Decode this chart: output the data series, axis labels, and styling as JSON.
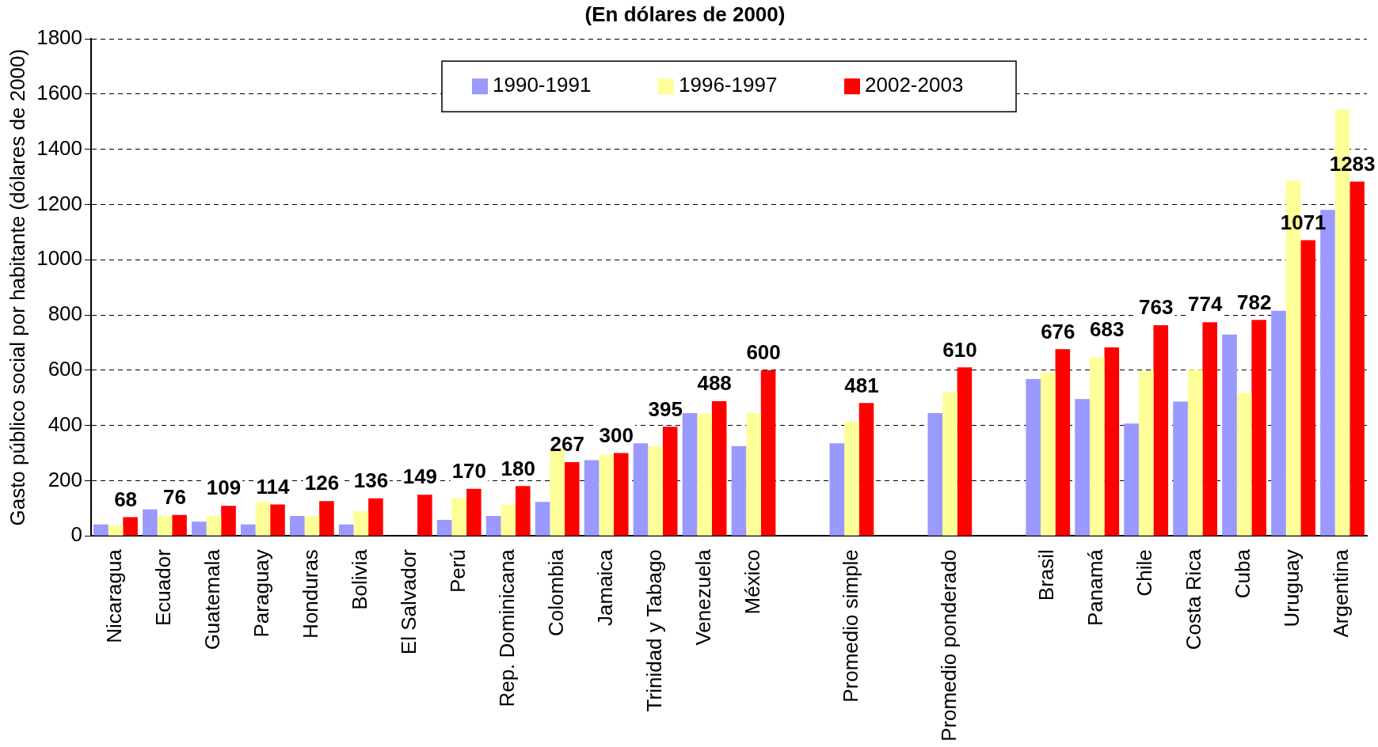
{
  "chart_data": {
    "type": "bar",
    "title": "(En dólares de 2000)",
    "ylabel": "Gasto público social por habitante (dólares de 2000)",
    "categories": [
      "Nicaragua",
      "Ecuador",
      "Guatemala",
      "Paraguay",
      "Honduras",
      "Bolivia",
      "El Salvador",
      "Perú",
      "Rep. Dominicana",
      "Colombia",
      "Jamaica",
      "Trinidad y Tabago",
      "Venezuela",
      "México",
      null,
      "Promedio simple",
      null,
      "Promedio ponderado",
      null,
      "Brasil",
      "Panamá",
      "Chile",
      "Costa Rica",
      "Cuba",
      "Uruguay",
      "Argentina"
    ],
    "series": [
      {
        "name": "1990-1991",
        "color": "#9999ff",
        "values": [
          41,
          96,
          51,
          41,
          72,
          41,
          null,
          58,
          72,
          123,
          274,
          335,
          445,
          325,
          null,
          335,
          null,
          445,
          null,
          568,
          496,
          407,
          486,
          729,
          815,
          1181
        ]
      },
      {
        "name": "1996-1997",
        "color": "#ffff99",
        "values": [
          38,
          72,
          72,
          123,
          72,
          89,
          null,
          137,
          113,
          315,
          294,
          325,
          441,
          445,
          null,
          414,
          null,
          520,
          null,
          592,
          647,
          599,
          602,
          517,
          1287,
          1544
        ]
      },
      {
        "name": "2002-2003",
        "color": "#ff0000",
        "values": [
          68,
          76,
          109,
          114,
          126,
          136,
          149,
          170,
          180,
          267,
          300,
          395,
          488,
          600,
          null,
          481,
          null,
          610,
          null,
          676,
          683,
          763,
          774,
          782,
          1071,
          1283
        ],
        "value_labels": [
          "68",
          "76",
          "109",
          "114",
          "126",
          "136",
          "149",
          "170",
          "180",
          "267",
          "300",
          "395",
          "488",
          "600",
          null,
          "481",
          null,
          "610",
          null,
          "676",
          "683",
          "763",
          "774",
          "782",
          "1071",
          "1283"
        ]
      }
    ],
    "ylim": [
      0,
      1800
    ],
    "yticks": [
      0,
      200,
      400,
      600,
      800,
      1000,
      1200,
      1400,
      1600,
      1800
    ],
    "grid": "y",
    "legend": "top"
  }
}
